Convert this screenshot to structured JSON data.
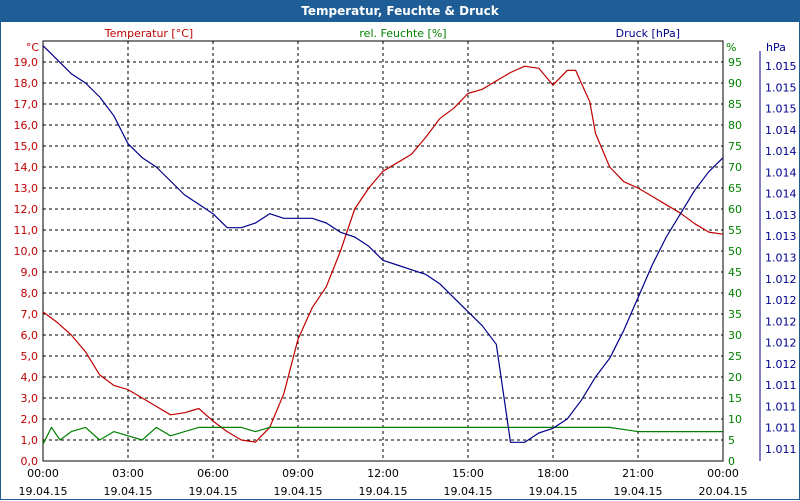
{
  "window": {
    "title": "Temperatur, Feuchte & Druck"
  },
  "colors": {
    "temperature": "#c00000",
    "humidity": "#008000",
    "pressure": "#00008b",
    "titlebar": "#1f5d96",
    "grid": "#000000"
  },
  "chart_data": {
    "type": "line",
    "title": "Temperatur, Feuchte & Druck",
    "x_ticks": [
      {
        "time": "00:00",
        "date": "19.04.15"
      },
      {
        "time": "03:00",
        "date": "19.04.15"
      },
      {
        "time": "06:00",
        "date": "19.04.15"
      },
      {
        "time": "09:00",
        "date": "19.04.15"
      },
      {
        "time": "12:00",
        "date": "19.04.15"
      },
      {
        "time": "15:00",
        "date": "19.04.15"
      },
      {
        "time": "18:00",
        "date": "19.04.15"
      },
      {
        "time": "21:00",
        "date": "19.04.15"
      },
      {
        "time": "00:00",
        "date": "20.04.15"
      }
    ],
    "xlim_hours": [
      0,
      24
    ],
    "axes": {
      "temperature": {
        "unit": "°C",
        "title": "Temperatur [°C]",
        "ylim": [
          0,
          20
        ],
        "ticks": [
          "0,0",
          "1,0",
          "2,0",
          "3,0",
          "4,0",
          "5,0",
          "6,0",
          "7,0",
          "8,0",
          "9,0",
          "10,0",
          "11,0",
          "12,0",
          "13,0",
          "14,0",
          "15,0",
          "16,0",
          "17,0",
          "18,0",
          "19,0"
        ]
      },
      "humidity": {
        "unit": "%",
        "title": "rel. Feuchte [%]",
        "ylim": [
          0,
          100
        ],
        "ticks": [
          "0",
          "5",
          "10",
          "15",
          "20",
          "25",
          "30",
          "35",
          "40",
          "45",
          "50",
          "55",
          "60",
          "65",
          "70",
          "75",
          "80",
          "85",
          "90",
          "95"
        ]
      },
      "pressure": {
        "unit": "hPa",
        "title": "Druck [hPa]",
        "ylim": [
          1010.8,
          1015.3
        ],
        "ticks": [
          "1.011",
          "1.011",
          "1.011",
          "1.011",
          "1.012",
          "1.012",
          "1.012",
          "1.012",
          "1.012",
          "1.013",
          "1.013",
          "1.013",
          "1.014",
          "1.014",
          "1.014",
          "1.014",
          "1.015",
          "1.015",
          "1.015"
        ]
      }
    },
    "series": [
      {
        "name": "Temperatur [°C]",
        "axis": "temperature",
        "x": [
          0,
          0.5,
          1,
          1.5,
          2,
          2.5,
          3,
          3.5,
          4,
          4.5,
          5,
          5.5,
          6,
          6.5,
          7,
          7.5,
          8,
          8.5,
          9,
          9.5,
          10,
          10.5,
          11,
          11.5,
          12,
          12.5,
          13,
          13.5,
          14,
          14.5,
          15,
          15.5,
          16,
          16.5,
          17,
          17.5,
          18,
          18.5,
          18.8,
          19,
          19.3,
          19.5,
          20,
          20.5,
          21,
          21.5,
          22,
          22.5,
          23,
          23.5,
          24
        ],
        "values": [
          7.1,
          6.6,
          6.0,
          5.2,
          4.1,
          3.6,
          3.4,
          3.0,
          2.6,
          2.2,
          2.3,
          2.5,
          1.9,
          1.4,
          1.0,
          0.9,
          1.6,
          3.2,
          5.8,
          7.3,
          8.3,
          10.0,
          12.0,
          13.0,
          13.8,
          14.2,
          14.6,
          15.4,
          16.3,
          16.8,
          17.5,
          17.7,
          18.1,
          18.5,
          18.8,
          18.7,
          17.9,
          18.6,
          18.6,
          18.0,
          17.1,
          15.6,
          14.0,
          13.3,
          13.0,
          12.6,
          12.2,
          11.8,
          11.3,
          10.9,
          10.8
        ]
      },
      {
        "name": "rel. Feuchte [%]",
        "axis": "humidity",
        "x": [
          0,
          0.3,
          0.6,
          1,
          1.5,
          2,
          2.5,
          3,
          3.5,
          4,
          4.5,
          5,
          5.5,
          6,
          6.5,
          7,
          7.5,
          8,
          8.5,
          9,
          10,
          11,
          12,
          13,
          14,
          15,
          16,
          17,
          18,
          19,
          20,
          21,
          22,
          23,
          24
        ],
        "values": [
          4,
          8,
          5,
          7,
          8,
          5,
          7,
          6,
          5,
          8,
          6,
          7,
          8,
          8,
          8,
          8,
          7,
          8,
          8,
          8,
          8,
          8,
          8,
          8,
          8,
          8,
          8,
          8,
          8,
          8,
          8,
          7,
          7,
          7,
          7
        ]
      },
      {
        "name": "Druck [hPa]",
        "axis": "pressure",
        "x": [
          0,
          0.5,
          1,
          1.5,
          2,
          2.5,
          3,
          3.5,
          4,
          4.5,
          5,
          5.5,
          6,
          6.5,
          7,
          7.5,
          8,
          8.5,
          9,
          9.5,
          10,
          10.5,
          11,
          11.5,
          12,
          12.5,
          13,
          13.5,
          14,
          14.5,
          15,
          15.5,
          16,
          16.5,
          17,
          17.5,
          18,
          18.5,
          19,
          19.5,
          20,
          20.5,
          21,
          21.5,
          22,
          22.5,
          23,
          23.5,
          24
        ],
        "values": [
          1015.25,
          1015.1,
          1014.95,
          1014.85,
          1014.7,
          1014.5,
          1014.2,
          1014.05,
          1013.95,
          1013.8,
          1013.65,
          1013.55,
          1013.45,
          1013.3,
          1013.3,
          1013.35,
          1013.45,
          1013.4,
          1013.4,
          1013.4,
          1013.35,
          1013.25,
          1013.2,
          1013.1,
          1012.95,
          1012.9,
          1012.85,
          1012.8,
          1012.7,
          1012.55,
          1012.4,
          1012.25,
          1012.05,
          1011.0,
          1011.0,
          1011.1,
          1011.15,
          1011.25,
          1011.45,
          1011.7,
          1011.9,
          1012.2,
          1012.55,
          1012.9,
          1013.2,
          1013.45,
          1013.7,
          1013.9,
          1014.05
        ]
      }
    ]
  }
}
